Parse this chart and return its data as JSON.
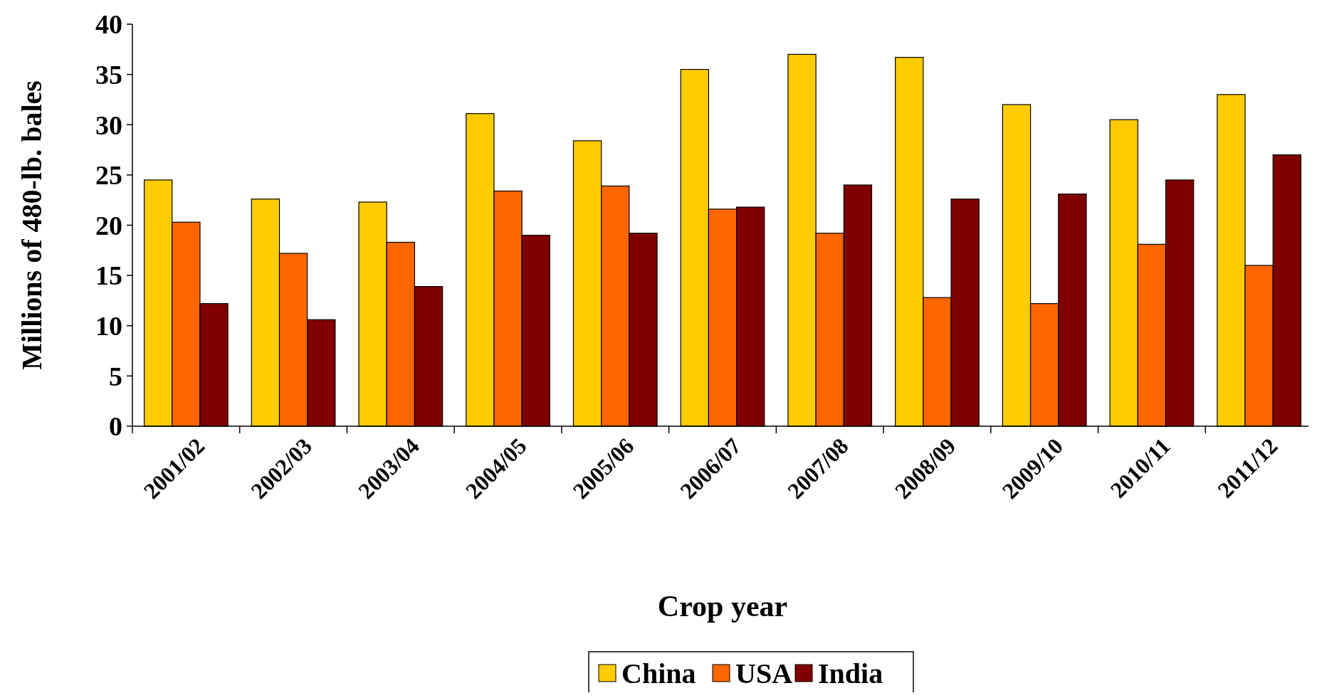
{
  "chart_data": {
    "type": "bar",
    "xlabel": "Crop year",
    "ylabel": "Millions of 480-lb. bales",
    "categories": [
      "2001/02",
      "2002/03",
      "2003/04",
      "2004/05",
      "2005/06",
      "2006/07",
      "2007/08",
      "2008/09",
      "2009/10",
      "2010/11",
      "2011/12"
    ],
    "series": [
      {
        "name": "China",
        "color": "#ffcc00",
        "values": [
          24.5,
          22.6,
          22.3,
          31.1,
          28.4,
          35.5,
          37.0,
          36.7,
          32.0,
          30.5,
          33.0
        ]
      },
      {
        "name": "USA",
        "color": "#ff6600",
        "values": [
          20.3,
          17.2,
          18.3,
          23.4,
          23.9,
          21.6,
          19.2,
          12.8,
          12.2,
          18.1,
          16.0
        ]
      },
      {
        "name": "India",
        "color": "#800000",
        "values": [
          12.2,
          10.6,
          13.9,
          19.0,
          19.2,
          21.8,
          24.0,
          22.6,
          23.1,
          24.5,
          27.0
        ]
      }
    ],
    "ylim": [
      0,
      40
    ],
    "yticks": [
      0,
      5,
      10,
      15,
      20,
      25,
      30,
      35,
      40
    ],
    "grid": false,
    "legend": "bottom"
  }
}
